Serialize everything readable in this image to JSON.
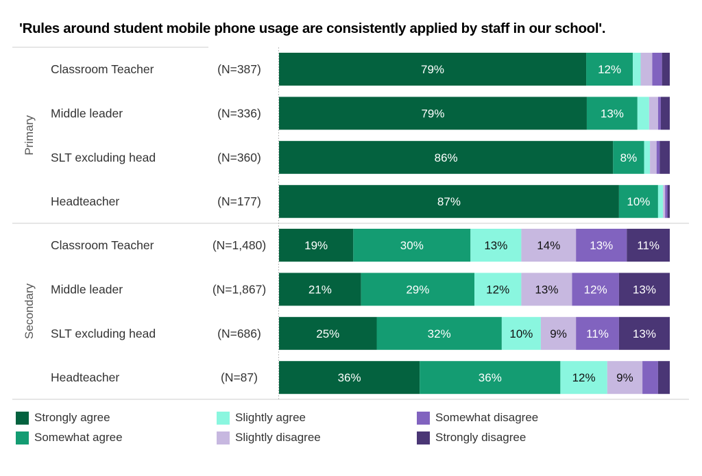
{
  "chart_data": {
    "type": "bar",
    "orientation": "horizontal",
    "stacked": true,
    "percent_scale": true,
    "title": "'Rules around student mobile phone usage are consistently applied by staff in our school'.",
    "groups": [
      {
        "name": "Primary",
        "rows": [
          {
            "label": "Classroom Teacher",
            "n": "(N=387)",
            "values": [
              79,
              12,
              2,
              3,
              2.5,
              2
            ]
          },
          {
            "label": "Middle leader",
            "n": "(N=336)",
            "values": [
              79,
              13,
              3,
              2.3,
              0.7,
              2.3
            ]
          },
          {
            "label": "SLT excluding head",
            "n": "(N=360)",
            "values": [
              86,
              8,
              1.5,
              1.7,
              0.8,
              2.6
            ]
          },
          {
            "label": "Headteacher",
            "n": "(N=177)",
            "values": [
              87,
              10,
              1.3,
              0.5,
              0.6,
              0.6
            ]
          }
        ]
      },
      {
        "name": "Secondary",
        "rows": [
          {
            "label": "Classroom Teacher",
            "n": "(N=1,480)",
            "values": [
              19,
              30,
              13,
              14,
              13,
              11
            ]
          },
          {
            "label": "Middle leader",
            "n": "(N=1,867)",
            "values": [
              21,
              29,
              12,
              13,
              12,
              13
            ]
          },
          {
            "label": "SLT excluding head",
            "n": "(N=686)",
            "values": [
              25,
              32,
              10,
              9,
              11,
              13
            ]
          },
          {
            "label": "Headteacher",
            "n": "(N=87)",
            "values": [
              36,
              36,
              12,
              9,
              4,
              3
            ]
          }
        ]
      }
    ],
    "series": [
      {
        "name": "Strongly agree",
        "color": "#04623f",
        "text_color": "#ffffff"
      },
      {
        "name": "Somewhat agree",
        "color": "#149c72",
        "text_color": "#ffffff"
      },
      {
        "name": "Slightly agree",
        "color": "#8af6df",
        "text_color": "#111111"
      },
      {
        "name": "Slightly disagree",
        "color": "#c7b8e0",
        "text_color": "#111111"
      },
      {
        "name": "Somewhat disagree",
        "color": "#8163bf",
        "text_color": "#ffffff"
      },
      {
        "name": "Strongly disagree",
        "color": "#4a3675",
        "text_color": "#ffffff"
      }
    ],
    "label_threshold": 7,
    "xlim": [
      0,
      100
    ],
    "legend_position": "bottom"
  }
}
